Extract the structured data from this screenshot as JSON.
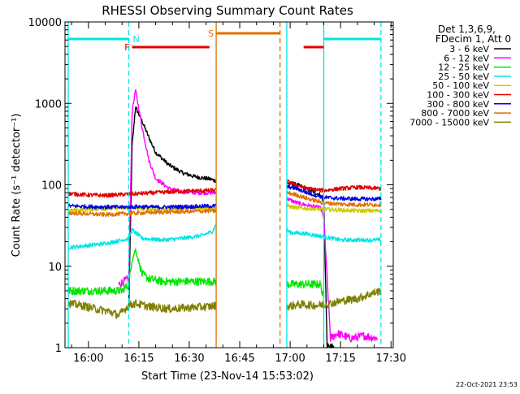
{
  "chart_data": {
    "type": "line",
    "title": "RHESSI Observing Summary Count Rates",
    "xlabel": "Start Time (23-Nov-14 15:53:02)",
    "ylabel": "Count Rate (s⁻¹ detector⁻¹)",
    "ylog": true,
    "ylim": [
      1,
      10000
    ],
    "xlim": [
      "15:53:02",
      "17:30:40"
    ],
    "x_ticks": [
      "16:00",
      "16:15",
      "16:30",
      "16:45",
      "17:00",
      "17:15",
      "17:30"
    ],
    "y_ticks": [
      "1",
      "10",
      "100",
      "1000",
      "10000"
    ],
    "legend_header": [
      "Det 1,3,6,9,",
      "FDecim 1, Att 0"
    ],
    "legend_position": "top-right-outside",
    "footer_date": "22-Oct-2021 23:53",
    "flags": [
      {
        "label": "N",
        "color": "#00e5e5",
        "bars": [
          [
            "15:54",
            "16:12"
          ],
          [
            "17:10",
            "17:27"
          ]
        ]
      },
      {
        "label": "F",
        "color": "#e00000",
        "bars": [
          [
            "16:13",
            "16:36"
          ],
          [
            "17:04",
            "17:10"
          ]
        ]
      },
      {
        "label": "S",
        "color": "#e07000",
        "bars": [
          [
            "16:38",
            "16:57"
          ]
        ]
      }
    ],
    "markers": [
      {
        "time": "15:54",
        "color": "#00e5e5",
        "style": "solid"
      },
      {
        "time": "16:12",
        "color": "#00e5e5",
        "style": "dashed"
      },
      {
        "time": "16:38",
        "color": "#e07000",
        "style": "solid"
      },
      {
        "time": "16:57",
        "color": "#e07000",
        "style": "dashed"
      },
      {
        "time": "16:59",
        "color": "#00e5e5",
        "style": "solid"
      },
      {
        "time": "17:10",
        "color": "#00e5e5",
        "style": "solid"
      },
      {
        "time": "17:27",
        "color": "#00e5e5",
        "style": "dashed"
      }
    ],
    "data_gaps": [
      [
        "16:38",
        "16:59"
      ]
    ],
    "series": [
      {
        "name": "3 - 6 keV",
        "color": "#000000",
        "points": [
          [
            "16:12",
            3
          ],
          [
            "16:13",
            300
          ],
          [
            "16:14",
            900
          ],
          [
            "16:16",
            600
          ],
          [
            "16:18",
            380
          ],
          [
            "16:20",
            250
          ],
          [
            "16:24",
            175
          ],
          [
            "16:28",
            140
          ],
          [
            "16:32",
            125
          ],
          [
            "16:36",
            118
          ],
          [
            "16:38",
            112
          ],
          [
            "16:59",
            105
          ],
          [
            "17:02",
            100
          ],
          [
            "17:06",
            85
          ],
          [
            "17:09",
            75
          ],
          [
            "17:10",
            62
          ],
          [
            "17:11",
            1
          ],
          [
            "17:13",
            1
          ]
        ]
      },
      {
        "name": "6 - 12 keV",
        "color": "#ff00ff",
        "points": [
          [
            "16:09",
            6
          ],
          [
            "16:12",
            7
          ],
          [
            "16:13",
            800
          ],
          [
            "16:14",
            1450
          ],
          [
            "16:16",
            500
          ],
          [
            "16:18",
            200
          ],
          [
            "16:20",
            120
          ],
          [
            "16:24",
            90
          ],
          [
            "16:28",
            82
          ],
          [
            "16:32",
            80
          ],
          [
            "16:36",
            80
          ],
          [
            "16:38",
            80
          ],
          [
            "16:59",
            68
          ],
          [
            "17:02",
            60
          ],
          [
            "17:06",
            55
          ],
          [
            "17:09",
            52
          ],
          [
            "17:10",
            40
          ],
          [
            "17:12",
            1.3
          ],
          [
            "17:14",
            1.5
          ],
          [
            "17:18",
            1.3
          ],
          [
            "17:22",
            1.4
          ],
          [
            "17:26",
            1.3
          ]
        ]
      },
      {
        "name": "12 - 25 keV",
        "color": "#00e600",
        "points": [
          [
            "15:54",
            5
          ],
          [
            "16:00",
            5
          ],
          [
            "16:05",
            5
          ],
          [
            "16:10",
            5
          ],
          [
            "16:12",
            6
          ],
          [
            "16:13",
            12
          ],
          [
            "16:14",
            16
          ],
          [
            "16:16",
            8
          ],
          [
            "16:18",
            7
          ],
          [
            "16:22",
            6.5
          ],
          [
            "16:28",
            6.5
          ],
          [
            "16:34",
            6.5
          ],
          [
            "16:38",
            6.5
          ],
          [
            "16:59",
            6
          ],
          [
            "17:04",
            6
          ],
          [
            "17:09",
            6
          ],
          [
            "17:10",
            4
          ]
        ]
      },
      {
        "name": "25 - 50 keV",
        "color": "#00e5e5",
        "points": [
          [
            "15:54",
            17
          ],
          [
            "16:00",
            18
          ],
          [
            "16:05",
            19
          ],
          [
            "16:10",
            21
          ],
          [
            "16:12",
            22
          ],
          [
            "16:13",
            28
          ],
          [
            "16:16",
            22
          ],
          [
            "16:22",
            21
          ],
          [
            "16:28",
            22
          ],
          [
            "16:34",
            24
          ],
          [
            "16:37",
            27
          ],
          [
            "16:38",
            33
          ],
          [
            "16:59",
            28
          ],
          [
            "17:00",
            26
          ],
          [
            "17:05",
            25
          ],
          [
            "17:10",
            23
          ],
          [
            "17:15",
            21
          ],
          [
            "17:20",
            21
          ],
          [
            "17:27",
            21
          ]
        ]
      },
      {
        "name": "50 - 100 keV",
        "color": "#cccc00",
        "points": [
          [
            "15:54",
            48
          ],
          [
            "16:00",
            50
          ],
          [
            "16:10",
            52
          ],
          [
            "16:20",
            50
          ],
          [
            "16:30",
            51
          ],
          [
            "16:38",
            52
          ],
          [
            "16:59",
            55
          ],
          [
            "17:02",
            52
          ],
          [
            "17:10",
            50
          ],
          [
            "17:15",
            49
          ],
          [
            "17:20",
            48
          ],
          [
            "17:27",
            48
          ]
        ]
      },
      {
        "name": "100 - 300 keV",
        "color": "#e00000",
        "points": [
          [
            "15:54",
            78
          ],
          [
            "16:00",
            75
          ],
          [
            "16:05",
            74
          ],
          [
            "16:10",
            76
          ],
          [
            "16:15",
            78
          ],
          [
            "16:20",
            80
          ],
          [
            "16:25",
            82
          ],
          [
            "16:30",
            84
          ],
          [
            "16:35",
            85
          ],
          [
            "16:38",
            86
          ],
          [
            "16:59",
            110
          ],
          [
            "17:02",
            100
          ],
          [
            "17:05",
            90
          ],
          [
            "17:10",
            85
          ],
          [
            "17:15",
            90
          ],
          [
            "17:20",
            93
          ],
          [
            "17:27",
            90
          ]
        ]
      },
      {
        "name": "300 - 800 keV",
        "color": "#0000e0",
        "points": [
          [
            "15:54",
            55
          ],
          [
            "16:00",
            54
          ],
          [
            "16:10",
            53
          ],
          [
            "16:15",
            54
          ],
          [
            "16:20",
            53
          ],
          [
            "16:30",
            54
          ],
          [
            "16:38",
            55
          ],
          [
            "16:59",
            95
          ],
          [
            "17:02",
            90
          ],
          [
            "17:05",
            80
          ],
          [
            "17:10",
            70
          ],
          [
            "17:15",
            68
          ],
          [
            "17:20",
            67
          ],
          [
            "17:27",
            67
          ]
        ]
      },
      {
        "name": "800 - 7000 keV",
        "color": "#e07000",
        "points": [
          [
            "15:54",
            45
          ],
          [
            "16:00",
            44
          ],
          [
            "16:05",
            43
          ],
          [
            "16:10",
            44
          ],
          [
            "16:15",
            45
          ],
          [
            "16:20",
            46
          ],
          [
            "16:30",
            47
          ],
          [
            "16:38",
            48
          ],
          [
            "16:59",
            80
          ],
          [
            "17:02",
            75
          ],
          [
            "17:05",
            68
          ],
          [
            "17:10",
            60
          ],
          [
            "17:15",
            58
          ],
          [
            "17:20",
            57
          ],
          [
            "17:27",
            57
          ]
        ]
      },
      {
        "name": "7000 - 15000 keV",
        "color": "#808000",
        "points": [
          [
            "15:54",
            3.5
          ],
          [
            "15:58",
            3.3
          ],
          [
            "16:02",
            3.0
          ],
          [
            "16:06",
            2.8
          ],
          [
            "16:09",
            2.5
          ],
          [
            "16:12",
            3.3
          ],
          [
            "16:14",
            3.5
          ],
          [
            "16:18",
            3.2
          ],
          [
            "16:24",
            3.0
          ],
          [
            "16:30",
            3.1
          ],
          [
            "16:36",
            3.2
          ],
          [
            "16:38",
            3.3
          ],
          [
            "16:59",
            3.2
          ],
          [
            "17:03",
            3.4
          ],
          [
            "17:08",
            3.3
          ],
          [
            "17:12",
            3.5
          ],
          [
            "17:16",
            3.8
          ],
          [
            "17:20",
            4.0
          ],
          [
            "17:24",
            4.6
          ],
          [
            "17:27",
            5.0
          ]
        ]
      }
    ]
  }
}
